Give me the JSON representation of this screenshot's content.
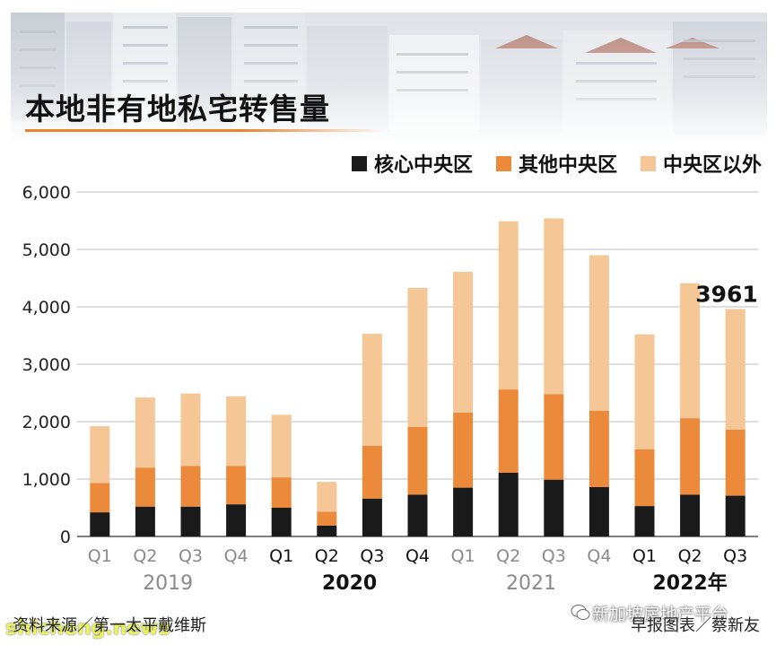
{
  "header": {
    "title": "本地非有地私宅转售量"
  },
  "colors": {
    "core_central": "#1a1a1a",
    "rest_of_central": "#ec8a3c",
    "outside_central": "#f5c696",
    "grid": "#bdbdbd",
    "accent": "#e8832c"
  },
  "chart_data": {
    "type": "bar",
    "stacked": true,
    "categories": [
      "Q1",
      "Q2",
      "Q3",
      "Q4",
      "Q1",
      "Q2",
      "Q3",
      "Q4",
      "Q1",
      "Q2",
      "Q3",
      "Q4",
      "Q1",
      "Q2",
      "Q3"
    ],
    "years": [
      {
        "label": "2019",
        "bold": false,
        "quarters": 4
      },
      {
        "label": "2020",
        "bold": true,
        "quarters": 4
      },
      {
        "label": "2021",
        "bold": false,
        "quarters": 4
      },
      {
        "label": "2022年",
        "bold": true,
        "quarters": 3
      }
    ],
    "series": [
      {
        "name": "核心中央区",
        "color": "#1a1a1a",
        "values": [
          420,
          520,
          520,
          560,
          500,
          190,
          660,
          730,
          850,
          1110,
          990,
          860,
          530,
          730,
          710
        ]
      },
      {
        "name": "其他中央区",
        "color": "#ec8a3c",
        "values": [
          510,
          680,
          710,
          670,
          530,
          240,
          920,
          1180,
          1310,
          1450,
          1490,
          1330,
          990,
          1330,
          1150
        ]
      },
      {
        "name": "中央区以外",
        "color": "#f5c696",
        "values": [
          990,
          1220,
          1260,
          1210,
          1090,
          520,
          1950,
          2420,
          2450,
          2930,
          3060,
          2710,
          2000,
          2350,
          2101
        ]
      }
    ],
    "totals": [
      1920,
      2420,
      2490,
      2440,
      2120,
      950,
      3530,
      4330,
      4610,
      5490,
      5540,
      4900,
      3520,
      4410,
      3961
    ],
    "yticks": [
      "0",
      "1,000",
      "2,000",
      "3,000",
      "4,000",
      "5,000",
      "6,000"
    ],
    "ylim": [
      0,
      6000
    ],
    "annotations": [
      {
        "category_index": 14,
        "text": "3961"
      }
    ],
    "grid": true,
    "legend_position": "top-right"
  },
  "footer": {
    "source": "资料来源／第一太平戴维斯",
    "credit": "早报图表／蔡新友",
    "watermark": "新加坡房地产平台",
    "site_mark": "shicheng.news"
  }
}
